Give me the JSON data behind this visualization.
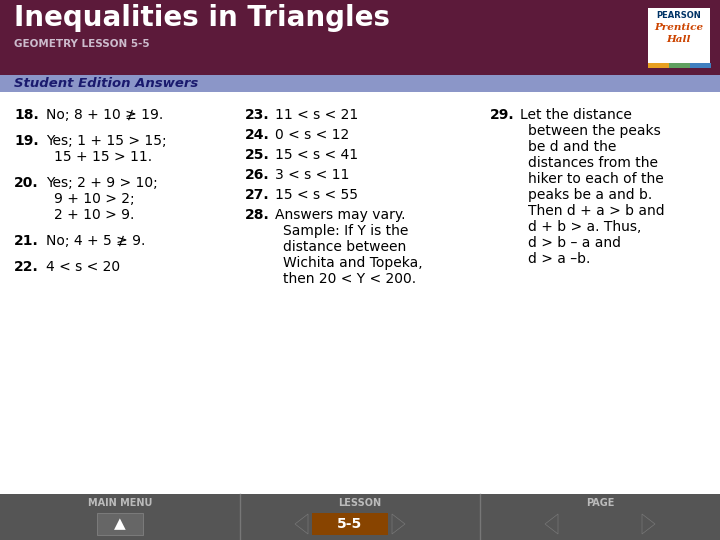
{
  "title": "Inequalities in Triangles",
  "subtitle": "GEOMETRY LESSON 5-5",
  "section_label": "Student Edition Answers",
  "header_bg": "#5c1a3a",
  "section_bg": "#8b96c8",
  "footer_bg": "#4a4a4a",
  "body_bg": "#ffffff",
  "footer_label": "5-5",
  "col1_items": [
    {
      "num": "18.",
      "text": "No; 8 + 10 ≱ 19."
    },
    {
      "num": "19.",
      "text": "Yes; 1 + 15 > 15;\n15 + 15 > 11."
    },
    {
      "num": "20.",
      "text": "Yes; 2 + 9 > 10;\n9 + 10 > 2;\n2 + 10 > 9."
    },
    {
      "num": "21.",
      "text": "No; 4 + 5 ≱ 9."
    },
    {
      "num": "22.",
      "text": "4 < s < 20"
    }
  ],
  "col2_items": [
    {
      "num": "23.",
      "text": "11 < s < 21"
    },
    {
      "num": "24.",
      "text": "0 < s < 12"
    },
    {
      "num": "25.",
      "text": "15 < s < 41"
    },
    {
      "num": "26.",
      "text": "3 < s < 11"
    },
    {
      "num": "27.",
      "text": "15 < s < 55"
    },
    {
      "num": "28.",
      "text": "Answers may vary.\nSample: If Y is the\ndistance between\nWichita and Topeka,\nthen 20 < Y < 200."
    }
  ],
  "col3_items": [
    {
      "num": "29.",
      "text": "Let the distance\nbetween the peaks\nbe d and the\ndistances from the\nhiker to each of the\npeaks be a and b.\nThen d + a > b and\nd + b > a. Thus,\nd > b – a and\nd > a –b."
    }
  ]
}
